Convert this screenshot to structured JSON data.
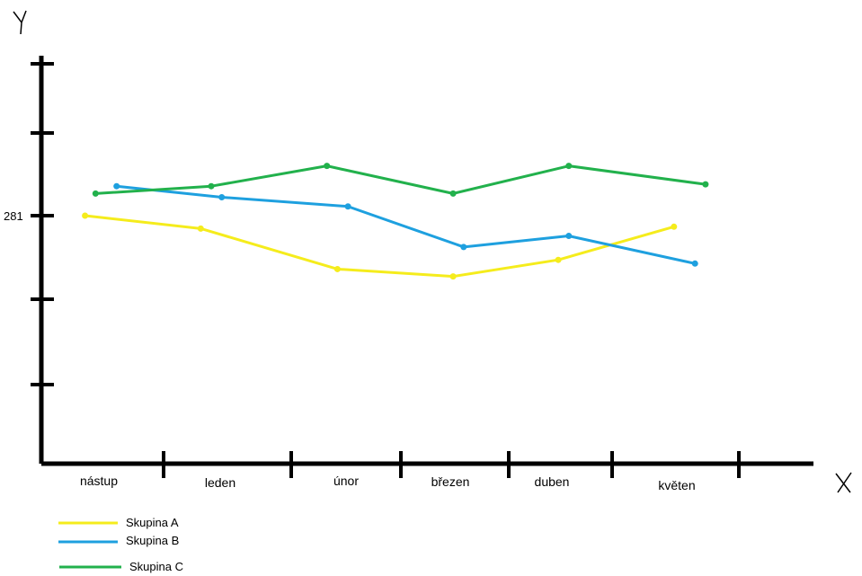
{
  "chart_data": {
    "type": "line",
    "xlabel": "X",
    "ylabel": "Y",
    "categories": [
      "nástup",
      "leden",
      "únor",
      "březen",
      "duben",
      "květen"
    ],
    "ytick_labels": [
      "281"
    ],
    "ylim": [
      171,
      365
    ],
    "grid": false,
    "legend_position": "bottom-left",
    "series": [
      {
        "name": "Skupina A",
        "color": "#f5ec1c",
        "points": [
          [
            -0.2,
            281
          ],
          [
            0.9,
            274
          ],
          [
            2.2,
            252
          ],
          [
            3.3,
            248
          ],
          [
            4.3,
            257
          ],
          [
            5.4,
            275
          ]
        ]
      },
      {
        "name": "Skupina B",
        "color": "#1ea0df",
        "points": [
          [
            0.1,
            297
          ],
          [
            1.1,
            291
          ],
          [
            2.3,
            286
          ],
          [
            3.4,
            264
          ],
          [
            4.4,
            270
          ],
          [
            5.6,
            255
          ]
        ]
      },
      {
        "name": "Skupina C",
        "color": "#22b14c",
        "points": [
          [
            -0.1,
            293
          ],
          [
            1.0,
            297
          ],
          [
            2.1,
            308
          ],
          [
            3.3,
            293
          ],
          [
            4.4,
            308
          ],
          [
            5.7,
            298
          ]
        ]
      }
    ]
  }
}
